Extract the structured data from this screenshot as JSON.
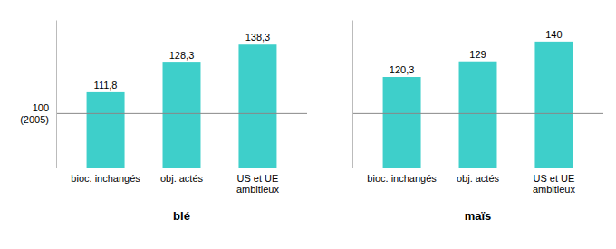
{
  "chart_data": [
    {
      "type": "bar",
      "xlabel": "blé",
      "categories": [
        "bioc. inchangés",
        "obj. actés",
        "US et UE\nambitieux"
      ],
      "values": [
        111.8,
        128.3,
        138.3
      ],
      "value_labels": [
        "111,8",
        "128,3",
        "138,3"
      ],
      "data_labels": true,
      "color": "#3ECFCA",
      "ylim": [
        70,
        152
      ],
      "yticks": [],
      "tick_labels": "x",
      "baseline": 100,
      "baseline_label": "100\n(2005)"
    },
    {
      "type": "bar",
      "xlabel": "maïs",
      "categories": [
        "bioc. inchangés",
        "obj. actés",
        "US et UE\nambitieux"
      ],
      "values": [
        120.3,
        129,
        140
      ],
      "value_labels": [
        "120,3",
        "129",
        "140"
      ],
      "data_labels": true,
      "color": "#3ECFCA",
      "ylim": [
        70,
        152
      ],
      "yticks": [],
      "tick_labels": "x",
      "baseline": 100
    }
  ]
}
